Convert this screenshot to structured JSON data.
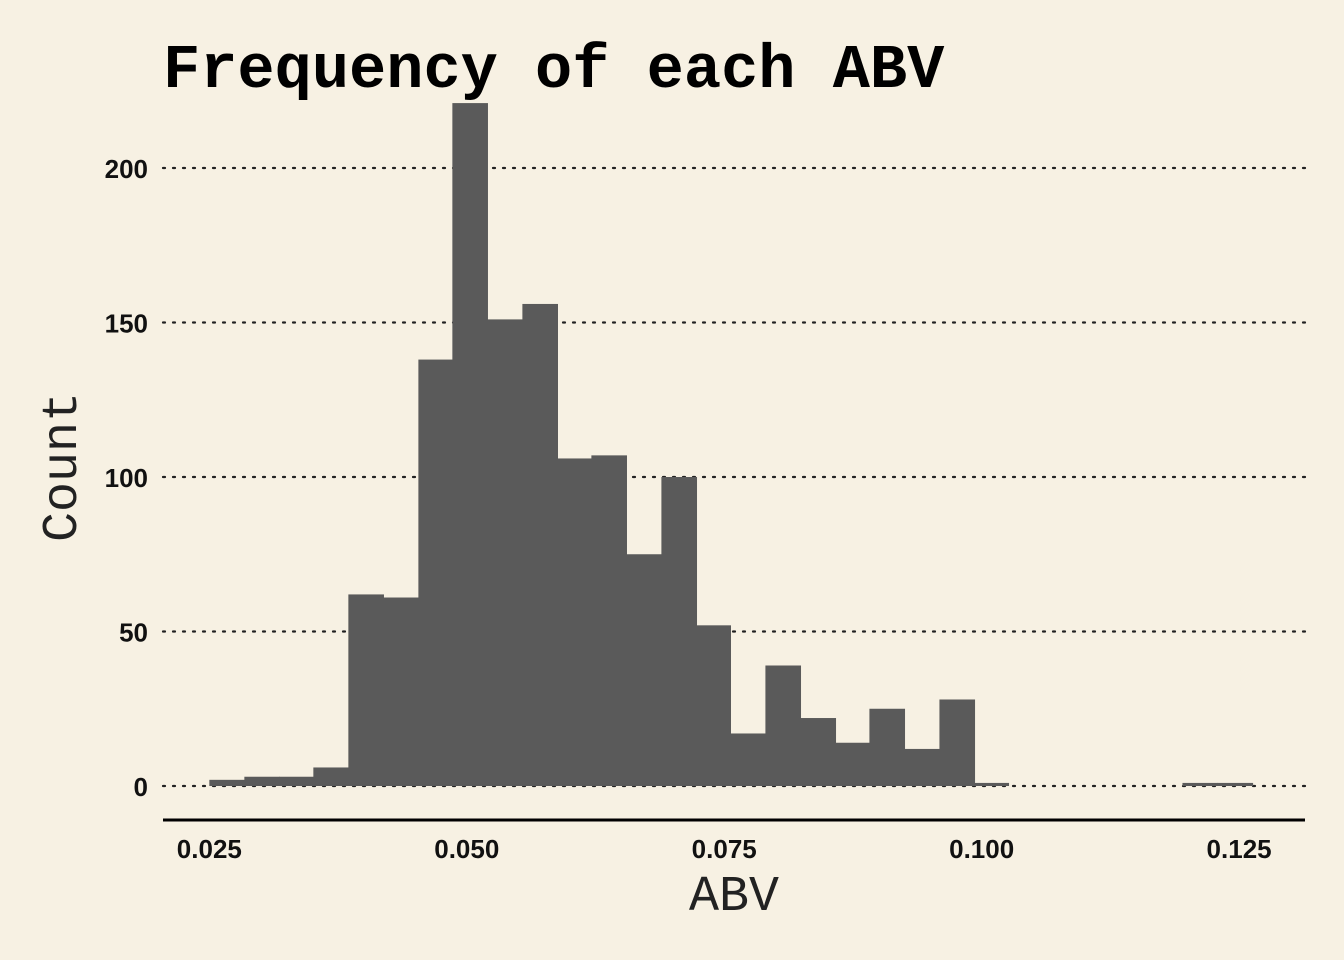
{
  "chart_data": {
    "type": "bar",
    "title": "Frequency of each ABV",
    "xlabel": "ABV",
    "ylabel": "Count",
    "xlim": [
      0.0205,
      0.1314
    ],
    "ylim": [
      -11,
      222
    ],
    "x_ticks": [
      "0.025",
      "0.050",
      "0.075",
      "0.100",
      "0.125"
    ],
    "y_ticks": [
      "0",
      "50",
      "100",
      "150",
      "200"
    ],
    "bin_width": 0.00338,
    "bins": [
      {
        "x0": 0.025,
        "x1": 0.0284,
        "count": 2
      },
      {
        "x0": 0.0284,
        "x1": 0.0318,
        "count": 3
      },
      {
        "x0": 0.0318,
        "x1": 0.0351,
        "count": 3
      },
      {
        "x0": 0.0351,
        "x1": 0.0385,
        "count": 6
      },
      {
        "x0": 0.0385,
        "x1": 0.0419,
        "count": 62
      },
      {
        "x0": 0.0419,
        "x1": 0.0453,
        "count": 61
      },
      {
        "x0": 0.0453,
        "x1": 0.0486,
        "count": 138
      },
      {
        "x0": 0.0486,
        "x1": 0.052,
        "count": 221
      },
      {
        "x0": 0.052,
        "x1": 0.0554,
        "count": 151
      },
      {
        "x0": 0.0554,
        "x1": 0.0588,
        "count": 156
      },
      {
        "x0": 0.0588,
        "x1": 0.0621,
        "count": 106
      },
      {
        "x0": 0.0621,
        "x1": 0.0655,
        "count": 107
      },
      {
        "x0": 0.0655,
        "x1": 0.0689,
        "count": 75
      },
      {
        "x0": 0.0689,
        "x1": 0.0723,
        "count": 100
      },
      {
        "x0": 0.0723,
        "x1": 0.0756,
        "count": 52
      },
      {
        "x0": 0.0756,
        "x1": 0.079,
        "count": 17
      },
      {
        "x0": 0.079,
        "x1": 0.0824,
        "count": 39
      },
      {
        "x0": 0.0824,
        "x1": 0.0858,
        "count": 22
      },
      {
        "x0": 0.0858,
        "x1": 0.0891,
        "count": 14
      },
      {
        "x0": 0.0891,
        "x1": 0.0925,
        "count": 25
      },
      {
        "x0": 0.0925,
        "x1": 0.0959,
        "count": 12
      },
      {
        "x0": 0.0959,
        "x1": 0.0993,
        "count": 28
      },
      {
        "x0": 0.0993,
        "x1": 0.1026,
        "count": 1
      },
      {
        "x0": 0.1026,
        "x1": 0.106,
        "count": 0
      },
      {
        "x0": 0.106,
        "x1": 0.1094,
        "count": 0
      },
      {
        "x0": 0.1094,
        "x1": 0.1128,
        "count": 0
      },
      {
        "x0": 0.1128,
        "x1": 0.1161,
        "count": 0
      },
      {
        "x0": 0.1161,
        "x1": 0.1195,
        "count": 0
      },
      {
        "x0": 0.1195,
        "x1": 0.1229,
        "count": 1
      },
      {
        "x0": 0.1229,
        "x1": 0.1263,
        "count": 1
      }
    ],
    "grid": "horizontal-dotted",
    "legend": "none",
    "colors": {
      "background": "#f7f1e3",
      "bar": "#5a5a5a",
      "grid": "#222222",
      "axis": "#000000"
    }
  }
}
